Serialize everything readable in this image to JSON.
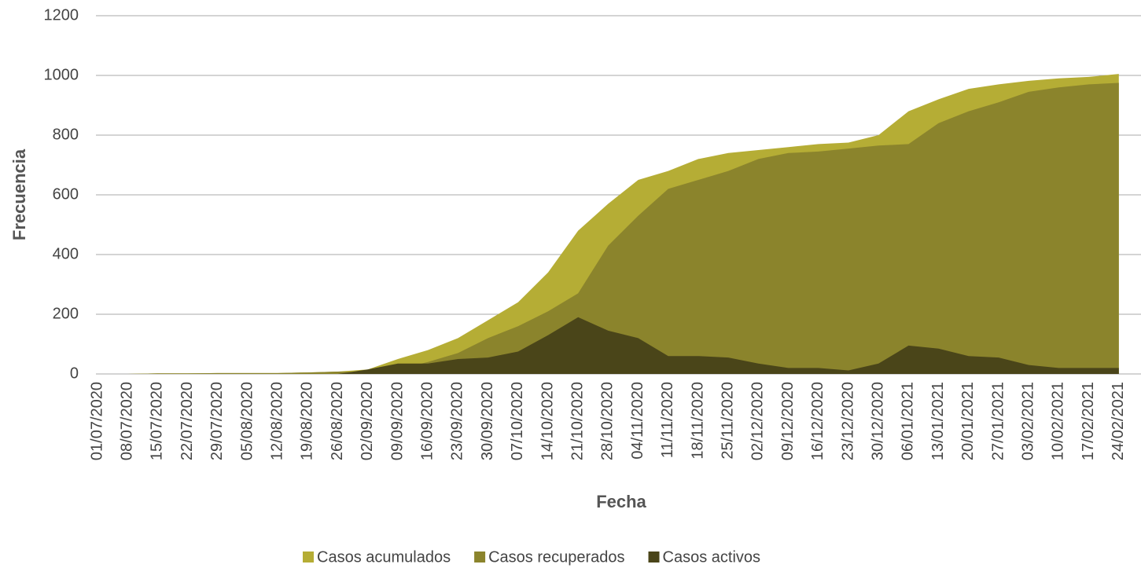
{
  "chart_data": {
    "type": "area",
    "x_label": "Fecha",
    "y_label": "Frecuencia",
    "categories": [
      "01/07/2020",
      "08/07/2020",
      "15/07/2020",
      "22/07/2020",
      "29/07/2020",
      "05/08/2020",
      "12/08/2020",
      "19/08/2020",
      "26/08/2020",
      "02/09/2020",
      "09/09/2020",
      "16/09/2020",
      "23/09/2020",
      "30/09/2020",
      "07/10/2020",
      "14/10/2020",
      "21/10/2020",
      "28/10/2020",
      "04/11/2020",
      "11/11/2020",
      "18/11/2020",
      "25/11/2020",
      "02/12/2020",
      "09/12/2020",
      "16/12/2020",
      "23/12/2020",
      "30/12/2020",
      "06/01/2021",
      "13/01/2021",
      "20/01/2021",
      "27/01/2021",
      "03/02/2021",
      "10/02/2021",
      "17/02/2021",
      "24/02/2021"
    ],
    "series": [
      {
        "name": "Casos acumulados",
        "color": "#b5ad35",
        "values": [
          0,
          0,
          2,
          2,
          3,
          3,
          3,
          5,
          8,
          15,
          50,
          80,
          120,
          180,
          240,
          340,
          480,
          570,
          650,
          680,
          720,
          740,
          750,
          760,
          770,
          775,
          800,
          880,
          920,
          955,
          970,
          982,
          990,
          995,
          1005
        ]
      },
      {
        "name": "Casos recuperados",
        "color": "#8b842c",
        "values": [
          0,
          0,
          2,
          2,
          3,
          3,
          3,
          5,
          8,
          5,
          15,
          40,
          70,
          120,
          160,
          210,
          270,
          430,
          530,
          620,
          650,
          680,
          720,
          740,
          745,
          755,
          765,
          770,
          840,
          880,
          910,
          945,
          960,
          970,
          975
        ]
      },
      {
        "name": "Casos activos",
        "color": "#4a4519",
        "values": [
          0,
          0,
          0,
          0,
          0,
          0,
          0,
          0,
          0,
          15,
          35,
          35,
          50,
          55,
          75,
          130,
          190,
          145,
          120,
          60,
          60,
          55,
          35,
          20,
          20,
          12,
          35,
          95,
          85,
          60,
          55,
          30,
          20,
          20,
          20
        ]
      }
    ],
    "ylim": [
      0,
      1200
    ],
    "yticks": [
      0,
      200,
      400,
      600,
      800,
      1000,
      1200
    ],
    "grid": true
  }
}
